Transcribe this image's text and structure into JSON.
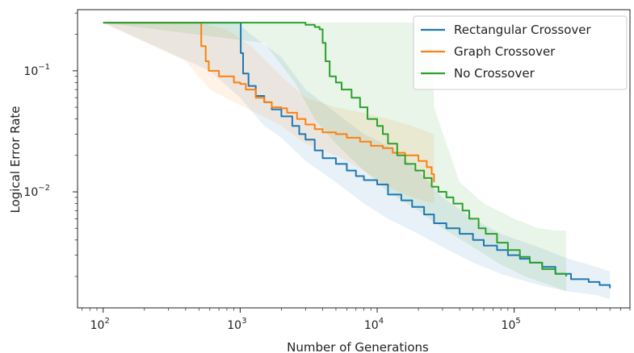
{
  "chart_data": {
    "type": "line",
    "title": "",
    "xlabel": "Number of Generations",
    "ylabel": "Logical Error Rate",
    "xscale": "log",
    "yscale": "log",
    "xlim": [
      65,
      700000
    ],
    "ylim": [
      0.0011,
      0.32
    ],
    "x_ticks": [
      {
        "value": 100,
        "base": "10",
        "exp": "2"
      },
      {
        "value": 1000,
        "base": "10",
        "exp": "3"
      },
      {
        "value": 10000,
        "base": "10",
        "exp": "4"
      },
      {
        "value": 100000,
        "base": "10",
        "exp": "5"
      }
    ],
    "y_ticks": [
      {
        "value": 0.1,
        "base": "10",
        "exp": "−1"
      },
      {
        "value": 0.01,
        "base": "10",
        "exp": "−2"
      }
    ],
    "grid": false,
    "legend_position": "top-right",
    "series": [
      {
        "name": "Rectangular Crossover",
        "color": "#1f77b4",
        "points": [
          [
            100,
            0.25
          ],
          [
            950,
            0.25
          ],
          [
            1010,
            0.14
          ],
          [
            1050,
            0.095
          ],
          [
            1150,
            0.075
          ],
          [
            1300,
            0.062
          ],
          [
            1500,
            0.055
          ],
          [
            1700,
            0.048
          ],
          [
            2000,
            0.042
          ],
          [
            2400,
            0.035
          ],
          [
            2700,
            0.03
          ],
          [
            3000,
            0.027
          ],
          [
            3500,
            0.022
          ],
          [
            4000,
            0.019
          ],
          [
            5000,
            0.017
          ],
          [
            6000,
            0.015
          ],
          [
            7000,
            0.0135
          ],
          [
            8000,
            0.0125
          ],
          [
            10000,
            0.0115
          ],
          [
            12000,
            0.0095
          ],
          [
            15000,
            0.0085
          ],
          [
            18000,
            0.0075
          ],
          [
            22000,
            0.0065
          ],
          [
            26000,
            0.0055
          ],
          [
            32000,
            0.005
          ],
          [
            40000,
            0.0045
          ],
          [
            50000,
            0.004
          ],
          [
            60000,
            0.0036
          ],
          [
            75000,
            0.0033
          ],
          [
            90000,
            0.003
          ],
          [
            110000,
            0.0028
          ],
          [
            130000,
            0.0026
          ],
          [
            160000,
            0.0024
          ],
          [
            200000,
            0.0021
          ],
          [
            260000,
            0.0019
          ],
          [
            350000,
            0.0018
          ],
          [
            420000,
            0.0017
          ],
          [
            500000,
            0.0016
          ]
        ],
        "band_lower": [
          [
            100,
            0.25
          ],
          [
            600,
            0.1
          ],
          [
            1000,
            0.06
          ],
          [
            1500,
            0.035
          ],
          [
            2000,
            0.028
          ],
          [
            3000,
            0.018
          ],
          [
            5000,
            0.012
          ],
          [
            8000,
            0.008
          ],
          [
            12000,
            0.006
          ],
          [
            20000,
            0.0045
          ],
          [
            30000,
            0.0035
          ],
          [
            50000,
            0.0026
          ],
          [
            80000,
            0.0021
          ],
          [
            150000,
            0.0017
          ],
          [
            250000,
            0.0015
          ],
          [
            400000,
            0.0014
          ],
          [
            500000,
            0.0013
          ]
        ],
        "band_upper": [
          [
            100,
            0.25
          ],
          [
            950,
            0.25
          ],
          [
            1200,
            0.2
          ],
          [
            2000,
            0.13
          ],
          [
            3000,
            0.07
          ],
          [
            5000,
            0.045
          ],
          [
            8000,
            0.03
          ],
          [
            12000,
            0.024
          ],
          [
            20000,
            0.015
          ],
          [
            30000,
            0.009
          ],
          [
            50000,
            0.006
          ],
          [
            80000,
            0.0045
          ],
          [
            150000,
            0.0035
          ],
          [
            250000,
            0.0028
          ],
          [
            400000,
            0.0024
          ],
          [
            500000,
            0.0022
          ]
        ]
      },
      {
        "name": "Graph Crossover",
        "color": "#ff7f0e",
        "points": [
          [
            100,
            0.25
          ],
          [
            500,
            0.25
          ],
          [
            520,
            0.16
          ],
          [
            560,
            0.12
          ],
          [
            590,
            0.1
          ],
          [
            700,
            0.09
          ],
          [
            900,
            0.08
          ],
          [
            1000,
            0.078
          ],
          [
            1100,
            0.07
          ],
          [
            1300,
            0.06
          ],
          [
            1500,
            0.055
          ],
          [
            1700,
            0.05
          ],
          [
            2000,
            0.049
          ],
          [
            2200,
            0.045
          ],
          [
            2600,
            0.04
          ],
          [
            3000,
            0.036
          ],
          [
            3500,
            0.033
          ],
          [
            4000,
            0.031
          ],
          [
            5000,
            0.03
          ],
          [
            6000,
            0.028
          ],
          [
            7500,
            0.026
          ],
          [
            9000,
            0.024
          ],
          [
            11000,
            0.023
          ],
          [
            13000,
            0.021
          ],
          [
            16000,
            0.02
          ],
          [
            20000,
            0.018
          ],
          [
            23000,
            0.016
          ],
          [
            25000,
            0.014
          ],
          [
            26000,
            0.012
          ]
        ],
        "band_lower": [
          [
            100,
            0.25
          ],
          [
            400,
            0.12
          ],
          [
            600,
            0.07
          ],
          [
            900,
            0.055
          ],
          [
            1300,
            0.045
          ],
          [
            2000,
            0.035
          ],
          [
            3000,
            0.025
          ],
          [
            5000,
            0.02
          ],
          [
            8000,
            0.015
          ],
          [
            12000,
            0.011
          ],
          [
            18000,
            0.009
          ],
          [
            26000,
            0.008
          ]
        ],
        "band_upper": [
          [
            100,
            0.25
          ],
          [
            500,
            0.25
          ],
          [
            800,
            0.22
          ],
          [
            1200,
            0.16
          ],
          [
            2000,
            0.09
          ],
          [
            3000,
            0.06
          ],
          [
            5000,
            0.05
          ],
          [
            8000,
            0.045
          ],
          [
            12000,
            0.04
          ],
          [
            18000,
            0.035
          ],
          [
            26000,
            0.03
          ]
        ]
      },
      {
        "name": "No Crossover",
        "color": "#2ca02c",
        "points": [
          [
            100,
            0.25
          ],
          [
            2500,
            0.25
          ],
          [
            3000,
            0.24
          ],
          [
            3500,
            0.23
          ],
          [
            3800,
            0.22
          ],
          [
            4000,
            0.17
          ],
          [
            4200,
            0.12
          ],
          [
            4500,
            0.09
          ],
          [
            5000,
            0.08
          ],
          [
            5500,
            0.07
          ],
          [
            6500,
            0.06
          ],
          [
            7500,
            0.05
          ],
          [
            8500,
            0.04
          ],
          [
            10000,
            0.035
          ],
          [
            11000,
            0.03
          ],
          [
            12000,
            0.025
          ],
          [
            14000,
            0.02
          ],
          [
            16000,
            0.017
          ],
          [
            19000,
            0.015
          ],
          [
            22000,
            0.013
          ],
          [
            25000,
            0.011
          ],
          [
            28000,
            0.01
          ],
          [
            32000,
            0.009
          ],
          [
            36000,
            0.008
          ],
          [
            42000,
            0.007
          ],
          [
            47000,
            0.006
          ],
          [
            55000,
            0.005
          ],
          [
            62000,
            0.0045
          ],
          [
            75000,
            0.0038
          ],
          [
            90000,
            0.0033
          ],
          [
            110000,
            0.0029
          ],
          [
            130000,
            0.0026
          ],
          [
            160000,
            0.0023
          ],
          [
            200000,
            0.0021
          ],
          [
            240000,
            0.002
          ]
        ],
        "band_lower": [
          [
            100,
            0.25
          ],
          [
            1500,
            0.17
          ],
          [
            2500,
            0.08
          ],
          [
            3500,
            0.04
          ],
          [
            5000,
            0.025
          ],
          [
            8000,
            0.015
          ],
          [
            12000,
            0.01
          ],
          [
            20000,
            0.007
          ],
          [
            30000,
            0.005
          ],
          [
            50000,
            0.0035
          ],
          [
            80000,
            0.0025
          ],
          [
            120000,
            0.002
          ],
          [
            180000,
            0.0017
          ],
          [
            240000,
            0.0015
          ]
        ],
        "band_upper": [
          [
            100,
            0.25
          ],
          [
            24000,
            0.25
          ],
          [
            25000,
            0.24
          ],
          [
            26000,
            0.05
          ],
          [
            40000,
            0.012
          ],
          [
            60000,
            0.008
          ],
          [
            100000,
            0.006
          ],
          [
            150000,
            0.005
          ],
          [
            200000,
            0.0048
          ],
          [
            240000,
            0.0048
          ]
        ]
      }
    ]
  }
}
